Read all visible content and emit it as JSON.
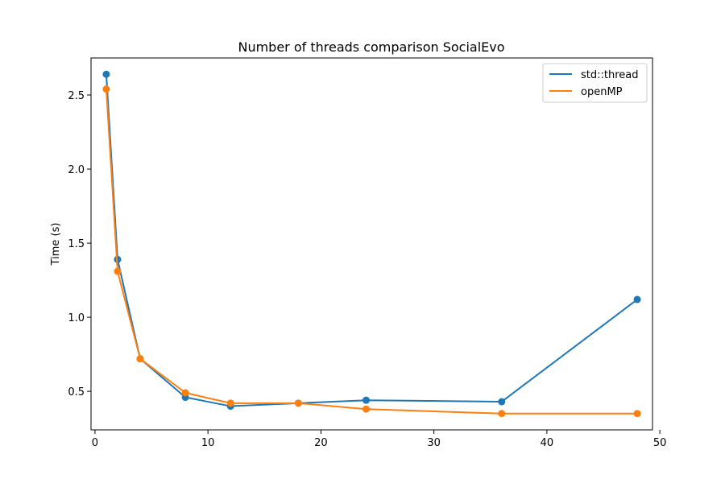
{
  "chart_data": {
    "type": "line",
    "title": "Number of threads comparison SocialEvo",
    "xlabel": "",
    "ylabel": "Time (s)",
    "xlim": [
      -0.35,
      49.35
    ],
    "ylim": [
      0.24,
      2.75
    ],
    "xticks": [
      0,
      10,
      20,
      30,
      40,
      50
    ],
    "yticks": [
      0.5,
      1.0,
      1.5,
      2.0,
      2.5
    ],
    "xtick_labels": [
      "0",
      "10",
      "20",
      "30",
      "40",
      "50"
    ],
    "ytick_labels": [
      "0.5",
      "1.0",
      "1.5",
      "2.0",
      "2.5"
    ],
    "grid": false,
    "legend_position": "top-right",
    "series": [
      {
        "name": "std::thread",
        "color": "#1f77b4",
        "x": [
          1,
          2,
          4,
          8,
          12,
          18,
          24,
          36,
          48
        ],
        "y": [
          2.64,
          1.39,
          0.72,
          0.46,
          0.4,
          0.42,
          0.44,
          0.43,
          1.12
        ]
      },
      {
        "name": "openMP",
        "color": "#ff7f0e",
        "x": [
          1,
          2,
          4,
          8,
          12,
          18,
          24,
          36,
          48
        ],
        "y": [
          2.54,
          1.31,
          0.72,
          0.49,
          0.42,
          0.42,
          0.38,
          0.35,
          0.35
        ]
      }
    ]
  }
}
